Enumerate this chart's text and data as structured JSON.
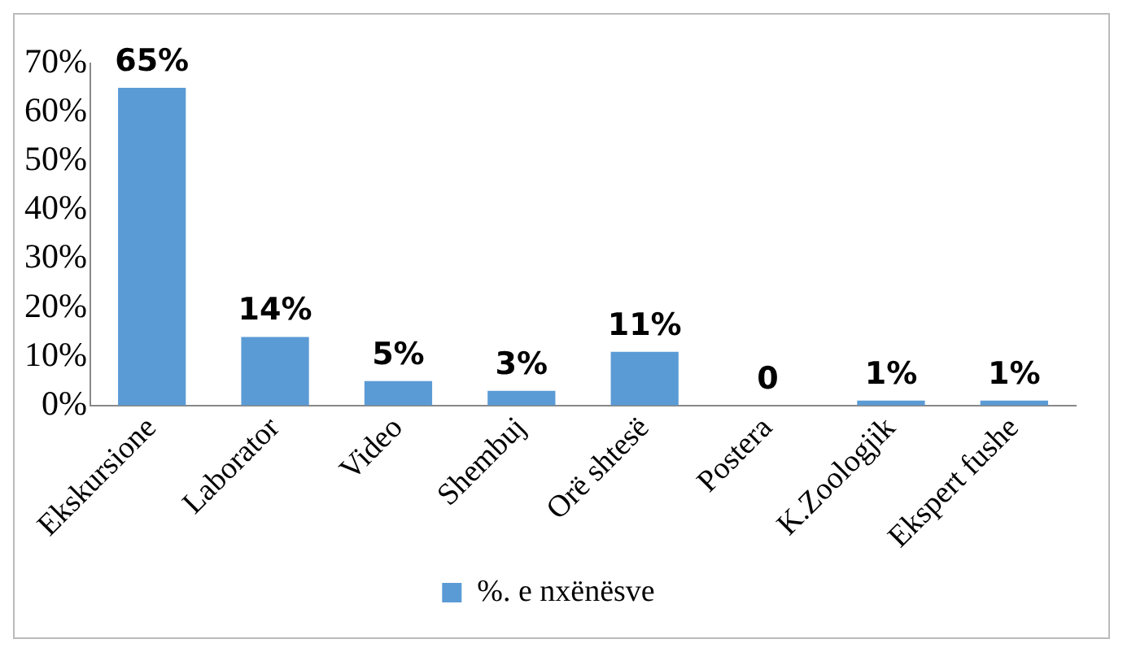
{
  "chart_data": {
    "type": "bar",
    "categories": [
      "Ekskursione",
      "Laborator",
      "Video",
      "Shembuj",
      "Orë shtesë",
      "Postera",
      "K.Zoologjik",
      "Ekspert fushe"
    ],
    "series": [
      {
        "name": "%. e nxënësve",
        "color": "#5b9bd5",
        "values": [
          65,
          14,
          5,
          3,
          11,
          0,
          1,
          1
        ]
      }
    ],
    "value_labels": [
      "65%",
      "14%",
      "5%",
      "3%",
      "11%",
      "0",
      "1%",
      "1%"
    ],
    "ylim": [
      0,
      70
    ],
    "yticks": [
      {
        "value": 0,
        "label": "0%"
      },
      {
        "value": 10,
        "label": "10%"
      },
      {
        "value": 20,
        "label": "20%"
      },
      {
        "value": 30,
        "label": "30%"
      },
      {
        "value": 40,
        "label": "40%"
      },
      {
        "value": 50,
        "label": "50%"
      },
      {
        "value": 60,
        "label": "60%"
      },
      {
        "value": 70,
        "label": "70%"
      }
    ],
    "grid": false,
    "legend": "bottom"
  }
}
